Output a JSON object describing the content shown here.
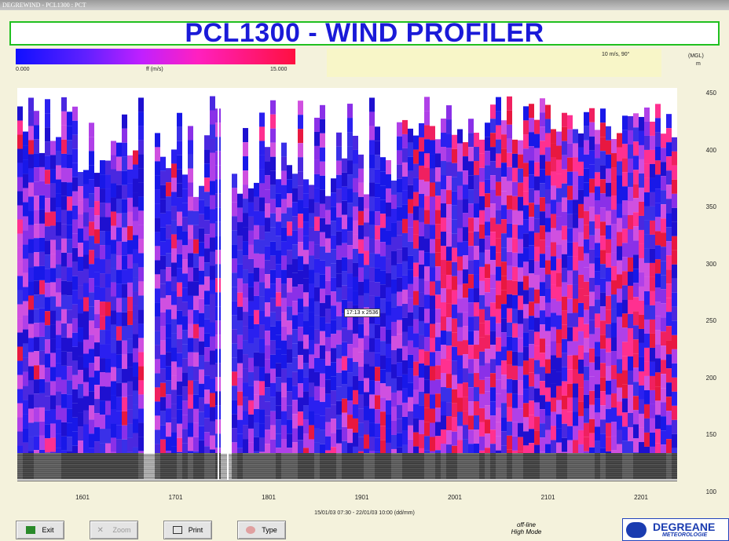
{
  "window": {
    "title": "DEGREWIND - PCL1300 : PCT"
  },
  "header": {
    "title": "PCL1300 - WIND PROFILER"
  },
  "color_scale": {
    "min_label": "0.000",
    "quantity": "ff (m/s)",
    "max_label": "15.000"
  },
  "barb_legend": "10 m/s, 90°",
  "y_axis": {
    "unit_top": "(MGL)",
    "unit": "m",
    "ticks": [
      "450",
      "400",
      "350",
      "300",
      "250",
      "200",
      "150",
      "100"
    ]
  },
  "x_axis": {
    "ticks": [
      "1601",
      "1701",
      "1801",
      "1901",
      "2001",
      "2101",
      "2201"
    ],
    "title": "15/01/03 07:30 - 22/01/03 10:00 (dd/mm)"
  },
  "tooltip": "17:13 x 2536",
  "buttons": [
    "Exit",
    "Zoom",
    "Print",
    "Type"
  ],
  "status": {
    "mode_line1": "off-line",
    "mode_line2": "High Mode"
  },
  "logo": {
    "name": "DEGREANE",
    "subtitle": "METEOROLOGIE"
  }
}
